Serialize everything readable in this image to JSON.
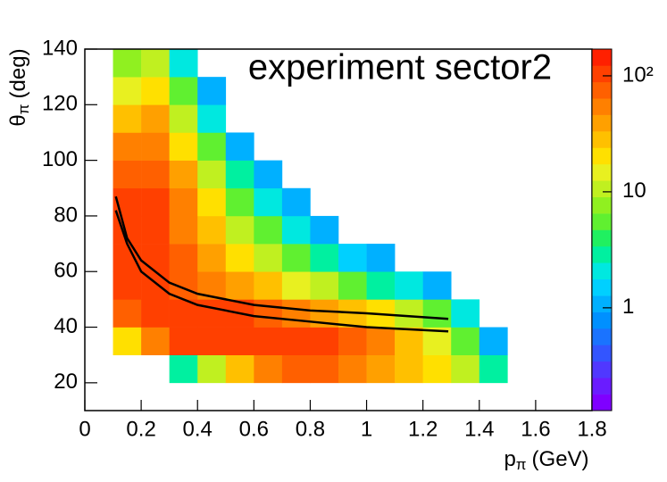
{
  "chart_data": {
    "type": "heatmap",
    "title": "experiment sector2",
    "xlabel": {
      "symbol": "p",
      "subscript": "π",
      "unit": "(GeV)"
    },
    "ylabel": {
      "symbol": "θ",
      "subscript": "π",
      "unit": "(deg)"
    },
    "xlim": [
      0,
      1.8
    ],
    "ylim": [
      10,
      140
    ],
    "xticks": [
      0,
      0.2,
      0.4,
      0.6,
      0.8,
      1,
      1.2,
      1.4,
      1.6,
      1.8
    ],
    "yticks": [
      20,
      40,
      60,
      80,
      100,
      120,
      140
    ],
    "x_bins": [
      0.1,
      0.2,
      0.3,
      0.4,
      0.5,
      0.6,
      0.7,
      0.8,
      0.9,
      1.0,
      1.1,
      1.2,
      1.3,
      1.4,
      1.5
    ],
    "y_bins": [
      20,
      30,
      40,
      50,
      60,
      70,
      80,
      90,
      100,
      110,
      120,
      130,
      140
    ],
    "z": [
      [
        null,
        null,
        3,
        10,
        30,
        60,
        80,
        80,
        60,
        40,
        30,
        20,
        10,
        3
      ],
      [
        20,
        60,
        100,
        120,
        120,
        120,
        110,
        90,
        70,
        50,
        30,
        15,
        5,
        1
      ],
      [
        80,
        120,
        120,
        110,
        100,
        80,
        60,
        40,
        30,
        20,
        10,
        5,
        2,
        null
      ],
      [
        110,
        100,
        80,
        60,
        40,
        25,
        15,
        10,
        5,
        3,
        2,
        1,
        null,
        null
      ],
      [
        110,
        100,
        70,
        40,
        20,
        10,
        5,
        3,
        1.5,
        1,
        null,
        null,
        null,
        null
      ],
      [
        100,
        110,
        60,
        30,
        12,
        5,
        2,
        1,
        null,
        null,
        null,
        null,
        null,
        null
      ],
      [
        90,
        100,
        50,
        20,
        6,
        2,
        1,
        null,
        null,
        null,
        null,
        null,
        null,
        null
      ],
      [
        70,
        80,
        35,
        10,
        3,
        1,
        null,
        null,
        null,
        null,
        null,
        null,
        null,
        null
      ],
      [
        50,
        60,
        20,
        5,
        1,
        null,
        null,
        null,
        null,
        null,
        null,
        null,
        null,
        null
      ],
      [
        30,
        40,
        10,
        2,
        null,
        null,
        null,
        null,
        null,
        null,
        null,
        null,
        null,
        null
      ],
      [
        15,
        20,
        5,
        1,
        null,
        null,
        null,
        null,
        null,
        null,
        null,
        null,
        null,
        null
      ],
      [
        8,
        10,
        2,
        null,
        null,
        null,
        null,
        null,
        null,
        null,
        null,
        null,
        null,
        null
      ]
    ],
    "zlog": true,
    "zlim": [
      0.13,
      170
    ],
    "zticks": [
      1,
      10,
      {
        "value": 100,
        "label": "10²"
      }
    ],
    "colormap": [
      "#7f00ff",
      "#6a1cff",
      "#5038ff",
      "#3355ff",
      "#1a73ff",
      "#0090ff",
      "#00b0ff",
      "#00d0ff",
      "#00e8e0",
      "#00f0a0",
      "#20f060",
      "#60f030",
      "#90f020",
      "#c0f020",
      "#e8f020",
      "#ffe000",
      "#ffc000",
      "#ffa000",
      "#ff8000",
      "#ff6000",
      "#ff4000",
      "#ff2000"
    ],
    "series": [
      {
        "color": "#000000",
        "x": [
          0.11,
          0.15,
          0.2,
          0.3,
          0.4,
          0.6,
          0.8,
          1.0,
          1.29
        ],
        "values": [
          87,
          72,
          64,
          56,
          52,
          48,
          46,
          45,
          43
        ]
      },
      {
        "color": "#000000",
        "x": [
          0.11,
          0.15,
          0.2,
          0.3,
          0.4,
          0.6,
          0.8,
          1.0,
          1.29
        ],
        "values": [
          82,
          70,
          60,
          52,
          48,
          44,
          42,
          40,
          38.5
        ]
      }
    ]
  }
}
